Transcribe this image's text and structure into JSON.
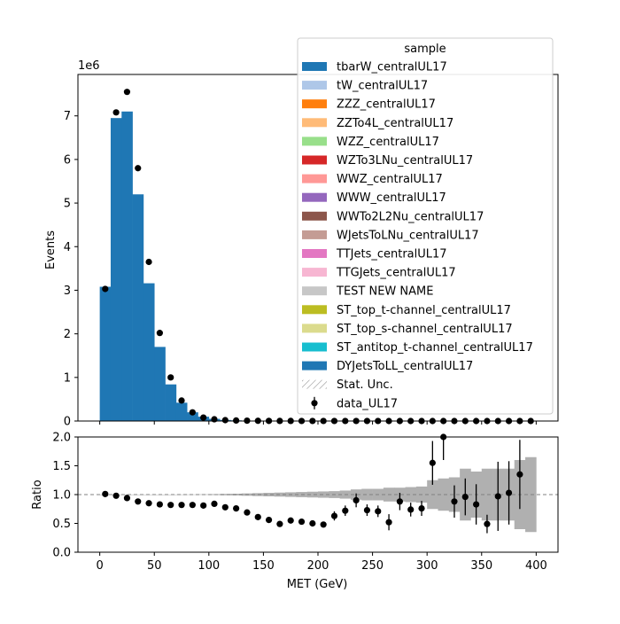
{
  "chart_data": [
    {
      "type": "bar",
      "ylabel": "Events",
      "y_multiplier": "1e6",
      "xlim": [
        -20,
        420
      ],
      "ylim": [
        0,
        7.95
      ],
      "xticks": [
        0,
        50,
        100,
        150,
        200,
        250,
        300,
        350,
        400
      ],
      "yticks": [
        0,
        1,
        2,
        3,
        4,
        5,
        6,
        7
      ],
      "bin_edges": [
        0,
        10,
        20,
        30,
        40,
        50,
        60,
        70,
        80,
        90,
        100,
        110,
        120,
        130,
        140,
        150,
        160,
        170,
        180,
        190,
        200,
        210,
        220,
        230,
        240,
        250,
        260,
        270,
        280,
        290,
        300,
        310,
        320,
        330,
        340,
        350,
        360,
        370,
        380,
        390,
        400
      ],
      "series": [
        {
          "name": "DYJetsToLL_centralUL17",
          "color": "#1f77b4",
          "values": [
            3.08,
            6.95,
            7.1,
            5.2,
            3.16,
            1.7,
            0.84,
            0.42,
            0.2,
            0.1,
            0.05,
            0.025,
            0.015,
            0.01,
            0.007,
            0.005,
            0.003,
            0.002,
            0.002,
            0.001,
            0.001,
            0.001,
            0.001,
            0,
            0,
            0,
            0,
            0,
            0,
            0,
            0,
            0,
            0,
            0,
            0,
            0,
            0,
            0,
            0,
            0
          ]
        }
      ],
      "data_series": {
        "name": "data_UL17",
        "x": [
          5,
          15,
          25,
          35,
          45,
          55,
          65,
          75,
          85,
          95,
          105,
          115,
          125,
          135,
          145,
          155,
          165,
          175,
          185,
          195,
          205,
          215,
          225,
          235,
          245,
          255,
          265,
          275,
          285,
          295,
          305,
          315,
          325,
          335,
          345,
          355,
          365,
          375,
          385,
          395
        ],
        "y": [
          3.03,
          7.08,
          7.55,
          5.8,
          3.65,
          2.02,
          1.0,
          0.47,
          0.2,
          0.08,
          0.04,
          0.02,
          0.012,
          0.008,
          0.005,
          0.003,
          0.002,
          0.002,
          0.001,
          0.001,
          0.001,
          0.001,
          0.001,
          0.001,
          0.001,
          0.001,
          0,
          0,
          0,
          0,
          0,
          0,
          0,
          0,
          0,
          0,
          0,
          0,
          0,
          0
        ]
      },
      "legend": {
        "title": "sample",
        "placement": "top-right",
        "entries": [
          {
            "label": "tbarW_centralUL17",
            "color": "#1f77b4",
            "kind": "patch"
          },
          {
            "label": "tW_centralUL17",
            "color": "#aec7e8",
            "kind": "patch"
          },
          {
            "label": "ZZZ_centralUL17",
            "color": "#ff7f0e",
            "kind": "patch"
          },
          {
            "label": "ZZTo4L_centralUL17",
            "color": "#ffbb78",
            "kind": "patch"
          },
          {
            "label": "WZZ_centralUL17",
            "color": "#98df8a",
            "kind": "patch"
          },
          {
            "label": "WZTo3LNu_centralUL17",
            "color": "#d62728",
            "kind": "patch"
          },
          {
            "label": "WWZ_centralUL17",
            "color": "#ff9896",
            "kind": "patch"
          },
          {
            "label": "WWW_centralUL17",
            "color": "#9467bd",
            "kind": "patch"
          },
          {
            "label": "WWTo2L2Nu_centralUL17",
            "color": "#8c564b",
            "kind": "patch"
          },
          {
            "label": "WJetsToLNu_centralUL17",
            "color": "#c49c94",
            "kind": "patch"
          },
          {
            "label": "TTJets_centralUL17",
            "color": "#e377c2",
            "kind": "patch"
          },
          {
            "label": "TTGJets_centralUL17",
            "color": "#f7b6d2",
            "kind": "patch"
          },
          {
            "label": "TEST NEW NAME",
            "color": "#c7c7c7",
            "kind": "patch"
          },
          {
            "label": "ST_top_t-channel_centralUL17",
            "color": "#bcbd22",
            "kind": "patch"
          },
          {
            "label": "ST_top_s-channel_centralUL17",
            "color": "#dbdb8d",
            "kind": "patch"
          },
          {
            "label": "ST_antitop_t-channel_centralUL17",
            "color": "#17becf",
            "kind": "patch"
          },
          {
            "label": "DYJetsToLL_centralUL17",
            "color": "#1f77b4",
            "kind": "patch"
          },
          {
            "label": "Stat. Unc.",
            "color": "#808080",
            "kind": "hatch"
          },
          {
            "label": "data_UL17",
            "color": "#000000",
            "kind": "errorbar"
          }
        ]
      }
    },
    {
      "type": "scatter",
      "xlabel": "MET (GeV)",
      "ylabel": "Ratio",
      "xlim": [
        -20,
        420
      ],
      "ylim": [
        0,
        2
      ],
      "xticks": [
        0,
        50,
        100,
        150,
        200,
        250,
        300,
        350,
        400
      ],
      "yticks": [
        0.0,
        0.5,
        1.0,
        1.5,
        2.0
      ],
      "ytick_labels": [
        "0.0",
        "0.5",
        "1.0",
        "1.5",
        "2.0"
      ],
      "reference_line": 1.0,
      "uncertainty_band": {
        "color": "#b0b0b0",
        "bin_edges": [
          0,
          10,
          20,
          30,
          40,
          50,
          60,
          70,
          80,
          90,
          100,
          110,
          120,
          130,
          140,
          150,
          160,
          170,
          180,
          190,
          200,
          210,
          220,
          230,
          240,
          250,
          260,
          270,
          280,
          290,
          300,
          310,
          320,
          330,
          340,
          350,
          360,
          370,
          380,
          390,
          400
        ],
        "half_width": [
          0.001,
          0.001,
          0.001,
          0.001,
          0.001,
          0.001,
          0.001,
          0.002,
          0.003,
          0.005,
          0.008,
          0.012,
          0.015,
          0.02,
          0.025,
          0.03,
          0.035,
          0.04,
          0.045,
          0.05,
          0.055,
          0.06,
          0.07,
          0.09,
          0.1,
          0.1,
          0.12,
          0.12,
          0.13,
          0.14,
          0.25,
          0.28,
          0.3,
          0.45,
          0.4,
          0.45,
          0.45,
          0.45,
          0.6,
          0.65
        ]
      },
      "points": {
        "x": [
          5,
          15,
          25,
          35,
          45,
          55,
          65,
          75,
          85,
          95,
          105,
          115,
          125,
          135,
          145,
          155,
          165,
          175,
          185,
          195,
          205,
          215,
          225,
          235,
          245,
          255,
          265,
          275,
          285,
          295,
          305,
          315,
          325,
          335,
          345,
          355,
          365,
          375,
          385
        ],
        "y": [
          1.01,
          0.98,
          0.94,
          0.88,
          0.85,
          0.83,
          0.82,
          0.82,
          0.82,
          0.81,
          0.84,
          0.78,
          0.76,
          0.69,
          0.61,
          0.56,
          0.49,
          0.55,
          0.53,
          0.5,
          0.48,
          0.63,
          0.72,
          0.9,
          0.73,
          0.71,
          0.52,
          0.88,
          0.74,
          0.76,
          1.55,
          2.0,
          0.88,
          0.96,
          0.83,
          0.49,
          0.97,
          1.03,
          1.35
        ],
        "yerr": [
          0.005,
          0.004,
          0.004,
          0.004,
          0.005,
          0.006,
          0.008,
          0.01,
          0.015,
          0.02,
          0.025,
          0.03,
          0.035,
          0.04,
          0.045,
          0.05,
          0.04,
          0.05,
          0.05,
          0.05,
          0.05,
          0.08,
          0.09,
          0.12,
          0.1,
          0.1,
          0.14,
          0.15,
          0.12,
          0.13,
          0.38,
          0.4,
          0.28,
          0.32,
          0.35,
          0.16,
          0.6,
          0.55,
          0.6
        ]
      }
    }
  ]
}
